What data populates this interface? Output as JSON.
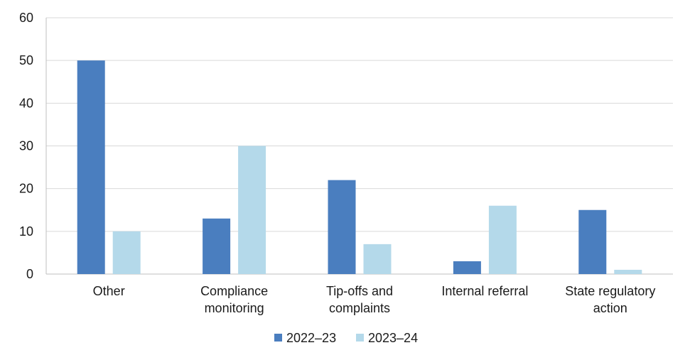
{
  "chart_data": {
    "type": "bar",
    "categories": [
      [
        "Other"
      ],
      [
        "Compliance",
        "monitoring"
      ],
      [
        "Tip-offs and",
        "complaints"
      ],
      [
        "Internal referral"
      ],
      [
        "State regulatory",
        "action"
      ]
    ],
    "series": [
      {
        "name": "2022–23",
        "color": "#4a7ebf",
        "values": [
          50,
          13,
          22,
          3,
          15
        ]
      },
      {
        "name": "2023–24",
        "color": "#b4d9ea",
        "values": [
          10,
          30,
          7,
          16,
          1
        ]
      }
    ],
    "ylim": [
      0,
      60
    ],
    "yticks": [
      0,
      10,
      20,
      30,
      40,
      50,
      60
    ],
    "grid": true,
    "legend": "bottom-center",
    "title": "",
    "xlabel": "",
    "ylabel": ""
  }
}
